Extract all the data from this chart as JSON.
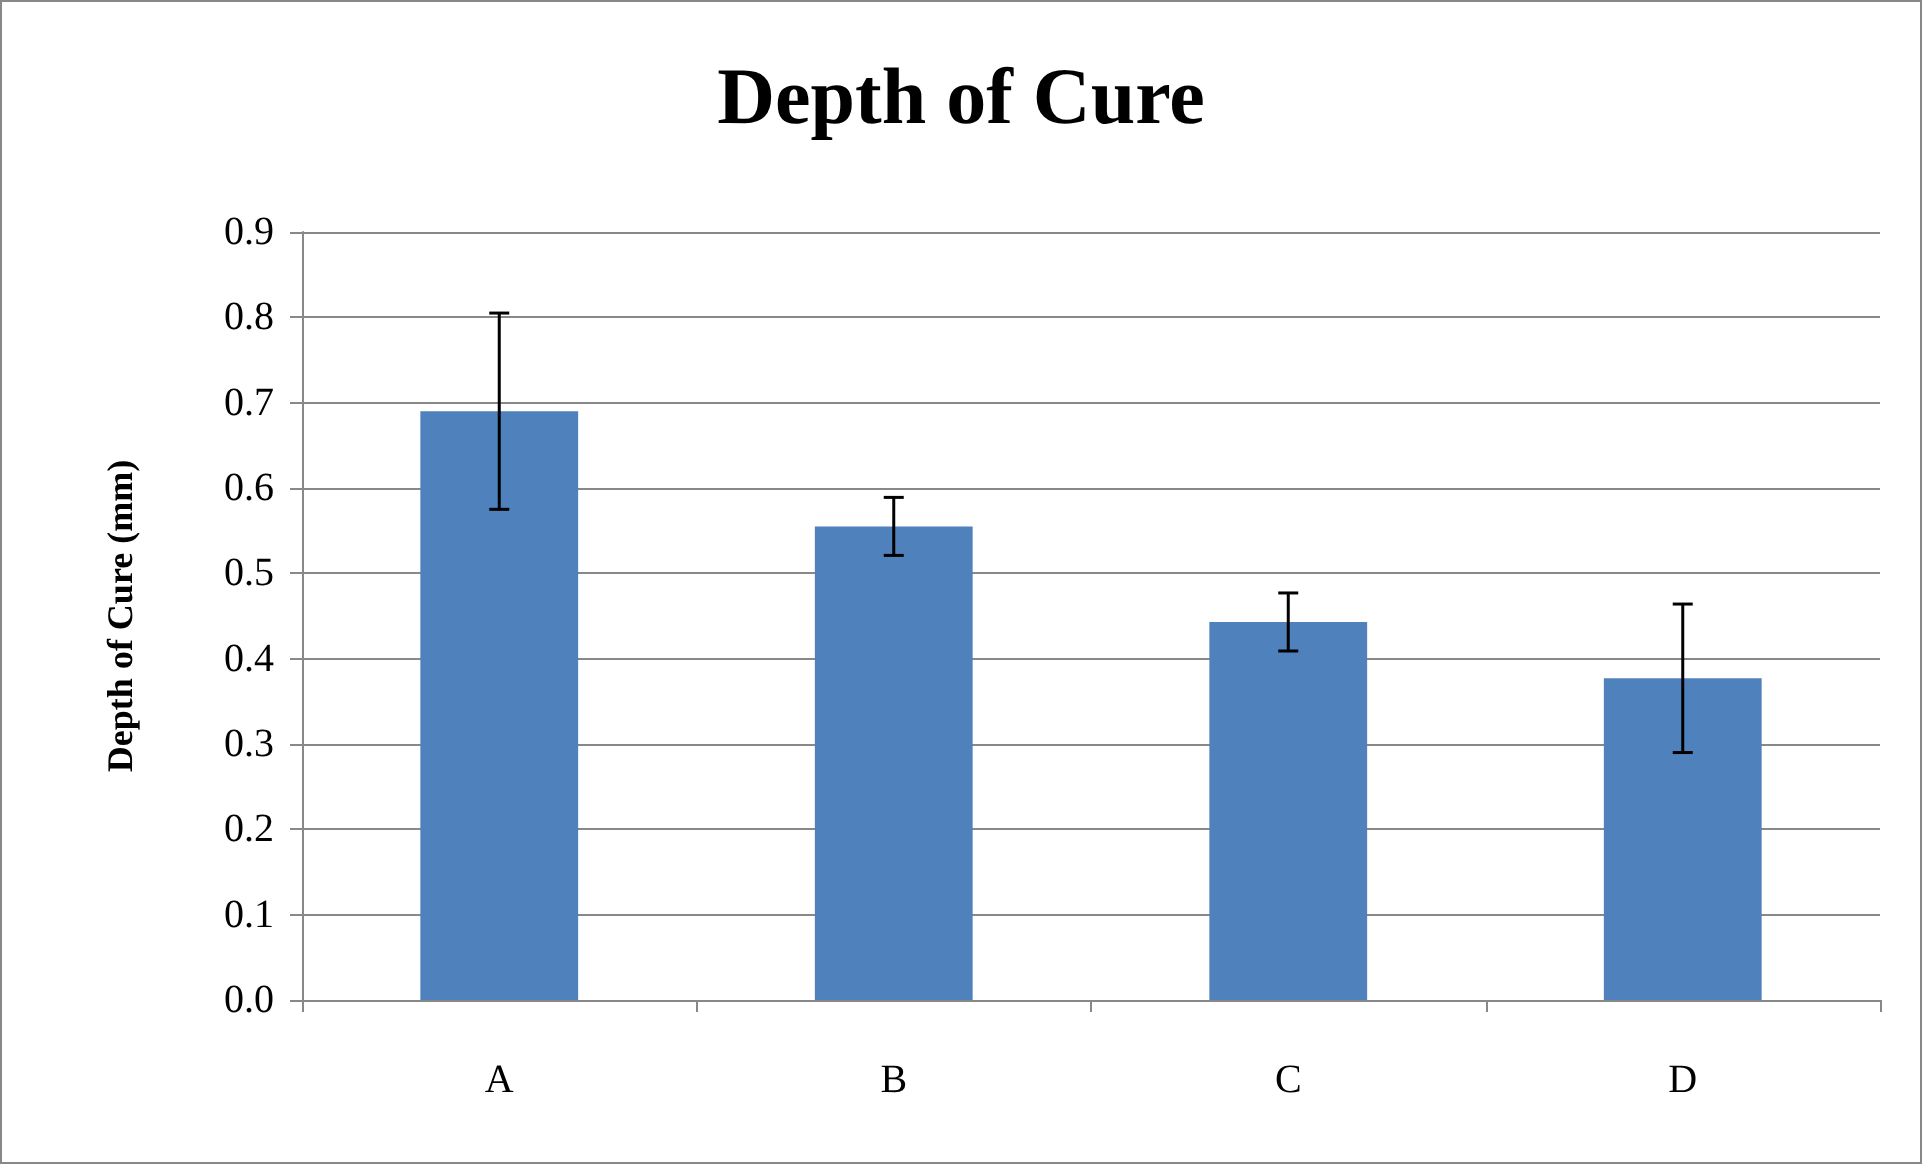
{
  "chart_data": {
    "type": "bar",
    "title": "Depth of Cure",
    "ylabel": "Depth of Cure (mm)",
    "categories": [
      "A",
      "B",
      "C",
      "D"
    ],
    "values": [
      0.69,
      0.555,
      0.443,
      0.377
    ],
    "errors": [
      0.115,
      0.034,
      0.034,
      0.087
    ],
    "color": "#4f81bd",
    "ylim": [
      0,
      0.9
    ],
    "yticks": [
      {
        "value": 0,
        "label": "0.0"
      },
      0.1,
      0.2,
      0.3,
      0.4,
      0.5,
      0.6,
      0.7,
      0.8,
      0.9
    ],
    "grid": "y"
  }
}
